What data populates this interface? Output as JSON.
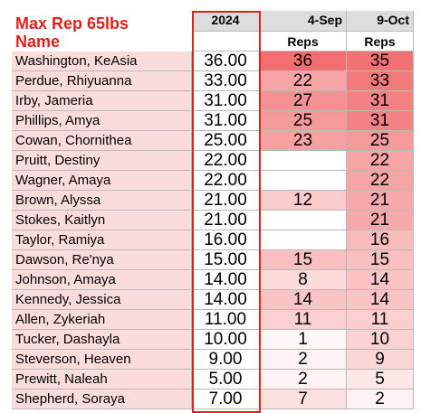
{
  "header": {
    "title": "Max Rep 65lbs",
    "name_label": "Name",
    "year": "2024",
    "date1": "4-Sep",
    "date2": "9-Oct",
    "reps1": "Reps",
    "reps2": "Reps"
  },
  "colors": {
    "accent_red": "#e0201b",
    "name_fill": "#fbdcdc",
    "header_gray": "#dcdcdc"
  },
  "rows": [
    {
      "name": "Washington, KeAsia",
      "year": "36.00",
      "sep": "36",
      "oct": "35"
    },
    {
      "name": "Perdue, Rhiyuanna",
      "year": "33.00",
      "sep": "22",
      "oct": "33"
    },
    {
      "name": "Irby, Jameria",
      "year": "31.00",
      "sep": "27",
      "oct": "31"
    },
    {
      "name": "Phillips, Amya",
      "year": "31.00",
      "sep": "25",
      "oct": "31"
    },
    {
      "name": "Cowan, Chornithea",
      "year": "25.00",
      "sep": "23",
      "oct": "25"
    },
    {
      "name": "Pruitt, Destiny",
      "year": "22.00",
      "sep": "",
      "oct": "22"
    },
    {
      "name": "Wagner, Amaya",
      "year": "22.00",
      "sep": "",
      "oct": "22"
    },
    {
      "name": "Brown, Alyssa",
      "year": "21.00",
      "sep": "12",
      "oct": "21"
    },
    {
      "name": "Stokes, Kaitlyn",
      "year": "21.00",
      "sep": "",
      "oct": "21"
    },
    {
      "name": "Taylor, Ramiya",
      "year": "16.00",
      "sep": "",
      "oct": "16"
    },
    {
      "name": "Dawson, Re'nya",
      "year": "15.00",
      "sep": "15",
      "oct": "15"
    },
    {
      "name": "Johnson, Amaya",
      "year": "14.00",
      "sep": "8",
      "oct": "14"
    },
    {
      "name": "Kennedy, Jessica",
      "year": "14.00",
      "sep": "14",
      "oct": "14"
    },
    {
      "name": "Allen, Zykeriah",
      "year": "11.00",
      "sep": "11",
      "oct": "11"
    },
    {
      "name": "Tucker, Dashayla",
      "year": "10.00",
      "sep": "1",
      "oct": "10"
    },
    {
      "name": "Steverson, Heaven",
      "year": "9.00",
      "sep": "2",
      "oct": "9"
    },
    {
      "name": "Prewitt, Naleah",
      "year": "5.00",
      "sep": "2",
      "oct": "5"
    },
    {
      "name": "Shepherd, Soraya",
      "year": "7.00",
      "sep": "7",
      "oct": "2"
    }
  ]
}
